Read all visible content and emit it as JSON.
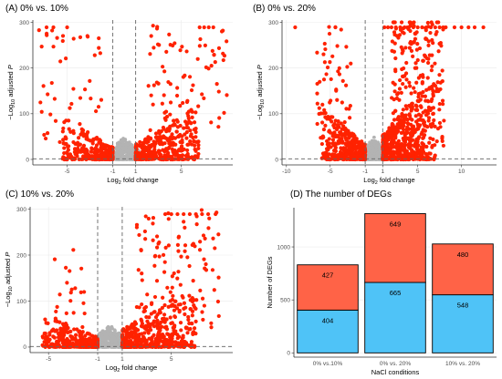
{
  "chart_data": [
    {
      "type": "scatter",
      "title": "(A) 0% vs. 10%",
      "xlabel_parts": [
        "Log",
        "2",
        " fold change"
      ],
      "ylabel_parts": [
        "−Log",
        "10",
        " adjusted ",
        "P"
      ],
      "xlim": [
        -8,
        9.5
      ],
      "ylim": [
        -12,
        305
      ],
      "xticks": [
        -5,
        -1,
        1,
        5
      ],
      "yticks": [
        0,
        100,
        200,
        300
      ],
      "threshold_x": [
        -1,
        1
      ],
      "threshold_y": 1.3,
      "colors": {
        "significant": "#ff2200",
        "nonsignificant": "#b3b3b3",
        "threshold": "#666666"
      },
      "seed": 11,
      "n_grey": 420,
      "clusters": [
        {
          "xmin": -5.4,
          "xmax": -1.0,
          "ypeak": 75,
          "n": 300,
          "side": -1
        },
        {
          "xmin": 1.0,
          "xmax": 6.5,
          "ypeak": 95,
          "n": 380,
          "side": 1
        },
        {
          "xmin": -7.5,
          "xmax": -2.0,
          "ypeak": 260,
          "n": 45,
          "side": -1,
          "sparse": true
        },
        {
          "xmin": 2.0,
          "xmax": 9.0,
          "ypeak": 270,
          "n": 80,
          "side": 1,
          "sparse": true
        }
      ],
      "saturated": [
        -6.8,
        -6.2,
        -5.0,
        6.6,
        7.0,
        7.4,
        7.8
      ]
    },
    {
      "type": "scatter",
      "title": "(B) 0% vs. 20%",
      "xlabel_parts": [
        "Log",
        "2",
        " fold change"
      ],
      "ylabel_parts": [
        "−Log",
        "10",
        " adjusted ",
        "P"
      ],
      "xlim": [
        -10.5,
        14
      ],
      "ylim": [
        -12,
        305
      ],
      "xticks": [
        -10,
        -5,
        -1,
        1,
        5,
        10
      ],
      "yticks": [
        0,
        100,
        200,
        300
      ],
      "threshold_x": [
        -1,
        1
      ],
      "threshold_y": 1.3,
      "colors": {
        "significant": "#ff2200",
        "nonsignificant": "#b3b3b3",
        "threshold": "#666666"
      },
      "seed": 23,
      "n_grey": 420,
      "clusters": [
        {
          "xmin": -6.0,
          "xmax": -1.0,
          "ypeak": 95,
          "n": 380,
          "side": -1
        },
        {
          "xmin": 1.0,
          "xmax": 7.0,
          "ypeak": 150,
          "n": 520,
          "side": 1
        },
        {
          "xmin": -6.5,
          "xmax": -2.5,
          "ypeak": 260,
          "n": 60,
          "side": -1,
          "sparse": true
        },
        {
          "xmin": 2.0,
          "xmax": 8.0,
          "ypeak": 280,
          "n": 220,
          "side": 1,
          "sparse": true
        }
      ],
      "saturated": [
        -9.0,
        -4.4,
        1.2,
        1.6,
        2.0,
        2.5,
        3.0,
        3.5,
        4.0,
        4.5,
        5.0,
        5.5,
        6.0,
        6.5,
        7.0,
        7.5,
        8.2,
        9.2,
        10.0,
        10.8,
        11.5,
        12.5
      ]
    },
    {
      "type": "scatter",
      "title": "(C) 10% vs. 20%",
      "xlabel_parts": [
        "Log",
        "2",
        " fold change"
      ],
      "ylabel_parts": [
        "−Log",
        "10",
        " adjusted ",
        "P"
      ],
      "xlim": [
        -6.5,
        10
      ],
      "ylim": [
        -12,
        305
      ],
      "xticks": [
        -5,
        -1,
        1,
        5
      ],
      "yticks": [
        0,
        100,
        200,
        300
      ],
      "threshold_x": [
        -1,
        1
      ],
      "threshold_y": 1.3,
      "colors": {
        "significant": "#ff2200",
        "nonsignificant": "#b3b3b3",
        "threshold": "#666666"
      },
      "seed": 37,
      "n_grey": 420,
      "clusters": [
        {
          "xmin": -5.5,
          "xmax": -1.0,
          "ypeak": 60,
          "n": 320,
          "side": -1
        },
        {
          "xmin": 1.0,
          "xmax": 7.0,
          "ypeak": 110,
          "n": 480,
          "side": 1
        },
        {
          "xmin": -5.5,
          "xmax": -2.0,
          "ypeak": 200,
          "n": 25,
          "side": -1,
          "sparse": true
        },
        {
          "xmin": 2.0,
          "xmax": 9.0,
          "ypeak": 270,
          "n": 110,
          "side": 1,
          "sparse": true
        }
      ],
      "saturated": [
        4.5,
        5.0,
        5.5,
        6.0,
        6.5,
        7.0,
        7.5,
        8.0,
        8.6
      ]
    },
    {
      "type": "bar",
      "stacked": true,
      "title": "(D) The number of DEGs",
      "xlabel": "NaCl conditions",
      "ylabel": "Number of DEGs",
      "categories": [
        "0% vs.10%",
        "0% vs. 20%",
        "10% vs. 20%"
      ],
      "ylim": [
        -40,
        1370
      ],
      "yticks": [
        0,
        500,
        1000
      ],
      "series": [
        {
          "values": [
            404,
            665,
            548
          ],
          "color": "#4fc3f7"
        },
        {
          "values": [
            427,
            649,
            480
          ],
          "color": "#ff6347"
        }
      ]
    }
  ]
}
